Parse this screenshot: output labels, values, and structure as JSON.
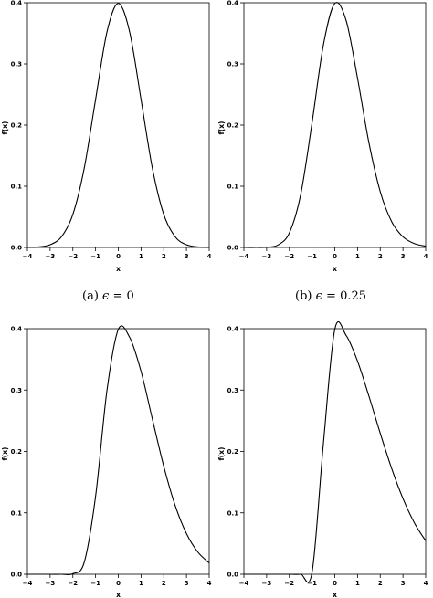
{
  "figure": {
    "captions": [
      {
        "label": "(a)",
        "symbol": "ϵ",
        "equals": "=",
        "value": "0"
      },
      {
        "label": "(b)",
        "symbol": "ϵ",
        "equals": "=",
        "value": "0.25"
      }
    ]
  },
  "chart_data": [
    {
      "type": "line",
      "title": "",
      "xlabel": "x",
      "ylabel": "f(x)",
      "xlim": [
        -4,
        4
      ],
      "ylim": [
        0,
        0.4
      ],
      "x_ticks": [
        -4,
        -3,
        -2,
        -1,
        0,
        1,
        2,
        3,
        4
      ],
      "y_ticks": [
        "0.0",
        "0.1",
        "0.2",
        "0.3",
        "0.4"
      ],
      "series": [
        {
          "x": [
            -4,
            -3.5,
            -3,
            -2.5,
            -2,
            -1.5,
            -1,
            -0.5,
            0,
            0.5,
            1,
            1.5,
            2,
            2.5,
            3,
            3.5,
            4
          ],
          "y": [
            0.0001,
            0.0009,
            0.0044,
            0.0175,
            0.054,
            0.1295,
            0.242,
            0.3521,
            0.3989,
            0.3521,
            0.242,
            0.1295,
            0.054,
            0.0175,
            0.0044,
            0.0009,
            0.0001
          ]
        }
      ]
    },
    {
      "type": "line",
      "title": "",
      "xlabel": "x",
      "ylabel": "f(x)",
      "xlim": [
        -4,
        4
      ],
      "ylim": [
        0,
        0.4
      ],
      "x_ticks": [
        -4,
        -3,
        -2,
        -1,
        0,
        1,
        2,
        3,
        4
      ],
      "y_ticks": [
        "0.0",
        "0.1",
        "0.2",
        "0.3",
        "0.4"
      ],
      "series": [
        {
          "x": [
            -4,
            -3.5,
            -3,
            -2.5,
            -2,
            -1.5,
            -1,
            -0.5,
            0,
            0.5,
            1,
            1.5,
            2,
            2.5,
            3,
            3.5,
            4
          ],
          "y": [
            0,
            0,
            0.0004,
            0.004,
            0.0237,
            0.0866,
            0.2041,
            0.3313,
            0.3989,
            0.3708,
            0.2768,
            0.1716,
            0.0912,
            0.0423,
            0.0174,
            0.0064,
            0.0021
          ]
        }
      ]
    },
    {
      "type": "line",
      "title": "",
      "xlabel": "x",
      "ylabel": "f(x)",
      "xlim": [
        -4,
        4
      ],
      "ylim": [
        0,
        0.4
      ],
      "x_ticks": [
        -4,
        -3,
        -2,
        -1,
        0,
        1,
        2,
        3,
        4
      ],
      "y_ticks": [
        "0.0",
        "0.1",
        "0.2",
        "0.3",
        "0.4"
      ],
      "series": [
        {
          "x": [
            -4,
            -3.5,
            -3,
            -2.5,
            -2,
            -1.5,
            -1,
            -0.5,
            0,
            0.5,
            1,
            1.5,
            2,
            2.5,
            3,
            3.5,
            4
          ],
          "y": [
            0,
            0,
            0,
            0,
            0.0009,
            0.0194,
            0.127,
            0.2991,
            0.3989,
            0.3858,
            0.3305,
            0.2527,
            0.1759,
            0.1122,
            0.0661,
            0.0361,
            0.0184
          ]
        }
      ]
    },
    {
      "type": "line",
      "title": "",
      "xlabel": "x",
      "ylabel": "f(x)",
      "xlim": [
        -4,
        4
      ],
      "ylim": [
        0,
        0.4
      ],
      "x_ticks": [
        -4,
        -3,
        -2,
        -1,
        0,
        1,
        2,
        3,
        4
      ],
      "y_ticks": [
        "0.0",
        "0.1",
        "0.2",
        "0.3",
        "0.4"
      ],
      "series": [
        {
          "x": [
            -4,
            -3.5,
            -3,
            -2.5,
            -2,
            -1.5,
            -1,
            -0.5,
            0,
            0.5,
            1,
            1.5,
            2,
            2.5,
            3,
            3.5,
            4
          ],
          "y": [
            0,
            0,
            0,
            0,
            0,
            0,
            0.0034,
            0.2135,
            0.3989,
            0.3889,
            0.3471,
            0.2903,
            0.2296,
            0.1726,
            0.1233,
            0.0839,
            0.0543
          ]
        }
      ]
    }
  ]
}
